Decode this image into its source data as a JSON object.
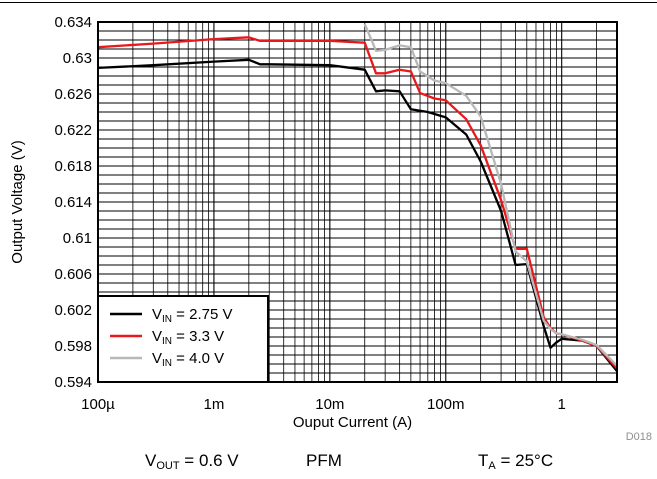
{
  "chart_data": {
    "type": "line",
    "xlabel": "Ouput Current (A)",
    "ylabel": "Output Voltage (V)",
    "x_scale": "log",
    "xlim": [
      0.0001,
      3
    ],
    "ylim": [
      0.594,
      0.634
    ],
    "x_ticks": [
      0.0001,
      0.001,
      0.01,
      0.1,
      1
    ],
    "x_tick_labels": [
      "100µ",
      "1m",
      "10m",
      "100m",
      "1"
    ],
    "y_ticks": [
      0.594,
      0.598,
      0.602,
      0.606,
      0.61,
      0.614,
      0.618,
      0.622,
      0.626,
      0.63,
      0.634
    ],
    "y_tick_labels": [
      "0.594",
      "0.598",
      "0.602",
      "0.606",
      "0.61",
      "0.614",
      "0.618",
      "0.622",
      "0.626",
      "0.63",
      "0.634"
    ],
    "grid": true,
    "legend_position": "bottom-left",
    "series": [
      {
        "name_main": "V",
        "name_sub": "IN",
        "name_rest": " = 2.75 V",
        "color": "#000000",
        "x": [
          0.0001,
          0.0003,
          0.001,
          0.002,
          0.0025,
          0.003,
          0.01,
          0.02,
          0.025,
          0.03,
          0.04,
          0.05,
          0.07,
          0.1,
          0.15,
          0.2,
          0.3,
          0.4,
          0.5,
          0.7,
          0.8,
          0.9,
          1.0,
          1.5,
          2.0,
          3.0
        ],
        "y": [
          0.6289,
          0.6292,
          0.6296,
          0.6298,
          0.6293,
          0.6293,
          0.6292,
          0.6287,
          0.6263,
          0.6264,
          0.6263,
          0.6243,
          0.624,
          0.6234,
          0.6215,
          0.6185,
          0.613,
          0.607,
          0.6071,
          0.6002,
          0.5978,
          0.5984,
          0.5988,
          0.5986,
          0.598,
          0.5952
        ]
      },
      {
        "name_main": "V",
        "name_sub": "IN",
        "name_rest": " = 3.3 V",
        "color": "#e8191d",
        "x": [
          0.0001,
          0.0003,
          0.001,
          0.002,
          0.0025,
          0.003,
          0.01,
          0.02,
          0.025,
          0.03,
          0.04,
          0.05,
          0.06,
          0.08,
          0.1,
          0.15,
          0.2,
          0.3,
          0.4,
          0.5,
          0.7,
          0.8,
          0.9,
          1.0,
          1.5,
          2.0,
          3.0
        ],
        "y": [
          0.6312,
          0.6316,
          0.6321,
          0.6323,
          0.6319,
          0.6319,
          0.6319,
          0.6317,
          0.6283,
          0.6283,
          0.6287,
          0.6285,
          0.6261,
          0.6255,
          0.6253,
          0.6232,
          0.6203,
          0.6142,
          0.6088,
          0.6088,
          0.6012,
          0.6,
          0.5994,
          0.5993,
          0.5986,
          0.598,
          0.5955
        ]
      },
      {
        "name_main": "V",
        "name_sub": "IN",
        "name_rest": " = 4.0 V",
        "color": "#b8b8b8",
        "x": [
          0.02,
          0.025,
          0.03,
          0.04,
          0.05,
          0.06,
          0.08,
          0.1,
          0.15,
          0.2,
          0.3,
          0.4,
          0.5,
          0.7,
          0.8,
          0.9,
          1.0,
          1.5,
          2.0,
          3.0
        ],
        "y": [
          0.6338,
          0.6308,
          0.6309,
          0.6314,
          0.6312,
          0.6285,
          0.6275,
          0.6272,
          0.6258,
          0.6235,
          0.616,
          0.6085,
          0.6074,
          0.6008,
          0.5999,
          0.5994,
          0.5993,
          0.5987,
          0.5981,
          0.5958
        ]
      }
    ]
  },
  "figure_id": "D018",
  "footer": {
    "vout_main": "V",
    "vout_sub": "OUT",
    "vout_rest": " = 0.6 V",
    "mode": "PFM",
    "ta_main": "T",
    "ta_sub": "A",
    "ta_rest": " = 25°C"
  }
}
